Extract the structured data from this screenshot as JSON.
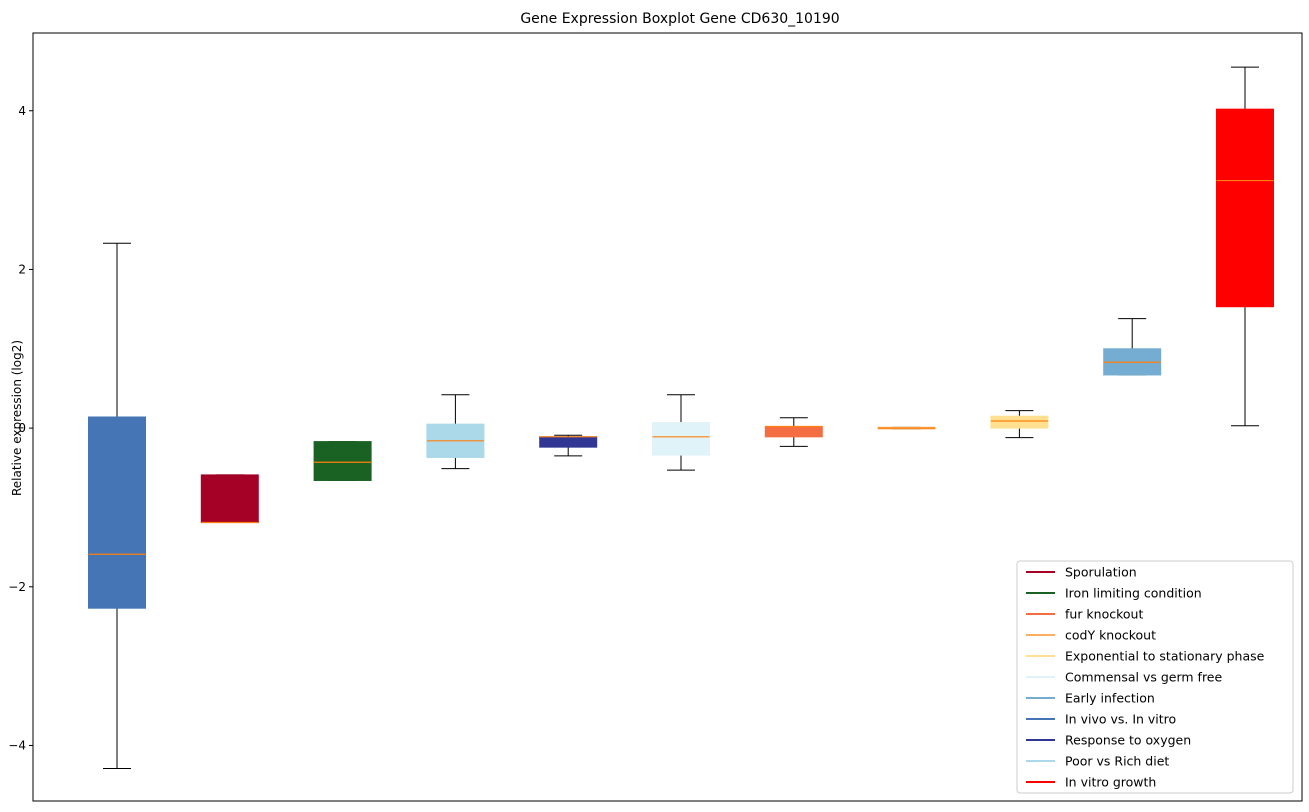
{
  "chart_data": {
    "type": "boxplot",
    "title": "Gene Expression Boxplot Gene CD630_10190",
    "xlabel": "",
    "ylabel": "Relative expression (log2)",
    "ylim": [
      -4.7,
      4.98
    ],
    "yticks": [
      4,
      2,
      0,
      -2,
      -4
    ],
    "ytick_labels": [
      "4",
      "2",
      "0",
      "−2",
      "−4"
    ],
    "grid": false,
    "legend_position": "lower-right",
    "boxes": [
      {
        "color": "#4575b4",
        "whisker_low": -4.29,
        "q1": -2.27,
        "median": -1.59,
        "q3": 0.14,
        "whisker_high": 2.33
      },
      {
        "color": "#a50026",
        "whisker_low": -1.19,
        "q1": -1.19,
        "median": -1.19,
        "q3": -0.59,
        "whisker_high": -0.59
      },
      {
        "color": "#1a6223",
        "whisker_low": -0.66,
        "q1": -0.66,
        "median": -0.43,
        "q3": -0.17,
        "whisker_high": -0.17
      },
      {
        "color": "#abd9e9",
        "whisker_low": -0.51,
        "q1": -0.37,
        "median": -0.16,
        "q3": 0.05,
        "whisker_high": 0.42
      },
      {
        "color": "#313695",
        "whisker_low": -0.35,
        "q1": -0.24,
        "median": -0.11,
        "q3": -0.11,
        "whisker_high": -0.09
      },
      {
        "color": "#e0f3f8",
        "whisker_low": -0.53,
        "q1": -0.34,
        "median": -0.11,
        "q3": 0.07,
        "whisker_high": 0.42
      },
      {
        "color": "#f46d43",
        "whisker_low": -0.23,
        "q1": -0.11,
        "median": 0.02,
        "q3": 0.02,
        "whisker_high": 0.13
      },
      {
        "color": "#fdae61",
        "whisker_low": -0.01,
        "q1": -0.01,
        "median": 0.0,
        "q3": 0.01,
        "whisker_high": 0.01
      },
      {
        "color": "#fee090",
        "whisker_low": -0.12,
        "q1": 0.0,
        "median": 0.09,
        "q3": 0.15,
        "whisker_high": 0.22
      },
      {
        "color": "#74add1",
        "whisker_low": 0.67,
        "q1": 0.67,
        "median": 0.83,
        "q3": 1.0,
        "whisker_high": 1.38
      },
      {
        "color": "#ff0000",
        "whisker_low": 0.03,
        "q1": 1.53,
        "median": 3.12,
        "q3": 4.02,
        "whisker_high": 4.55
      }
    ],
    "median_color": "#ff7f0e",
    "legend": [
      {
        "label": "Sporulation",
        "color": "#a50026"
      },
      {
        "label": "Iron limiting condition",
        "color": "#1a6223"
      },
      {
        "label": "fur knockout",
        "color": "#f46d43"
      },
      {
        "label": "codY knockout",
        "color": "#fdae61"
      },
      {
        "label": "Exponential to stationary phase",
        "color": "#fee090"
      },
      {
        "label": "Commensal vs germ free",
        "color": "#e0f3f8"
      },
      {
        "label": "Early infection",
        "color": "#74add1"
      },
      {
        "label": "In vivo vs. In vitro",
        "color": "#4575b4"
      },
      {
        "label": "Response to oxygen",
        "color": "#313695"
      },
      {
        "label": "Poor vs Rich diet",
        "color": "#abd9e9"
      },
      {
        "label": "In vitro growth",
        "color": "#ff0000"
      }
    ]
  }
}
